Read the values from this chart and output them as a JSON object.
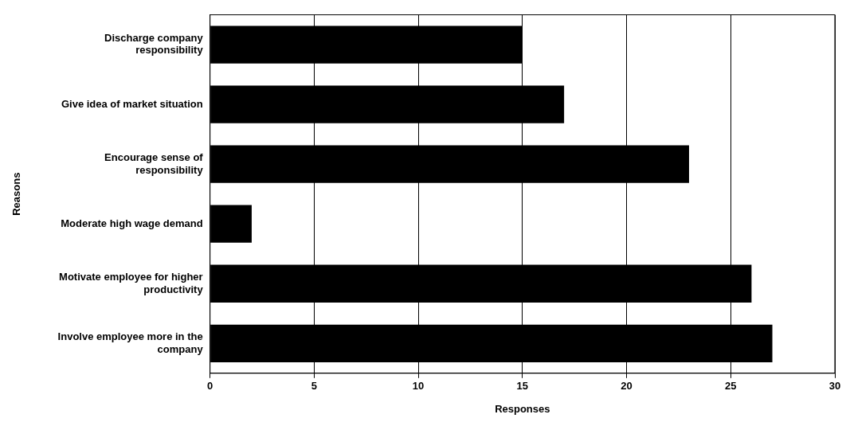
{
  "chart_data": {
    "type": "bar",
    "orientation": "horizontal",
    "xlabel": "Responses",
    "ylabel": "Reasons",
    "categories": [
      "Discharge company responsibility",
      "Give idea of market situation",
      "Encourage sense of responsibility",
      "Moderate high wage demand",
      "Motivate employee for higher productivity",
      "Involve employee more in the company"
    ],
    "values": [
      15,
      17,
      23,
      2,
      26,
      27
    ],
    "color": "#000000",
    "xlim": [
      0,
      30
    ],
    "xticks": [
      0,
      5,
      10,
      15,
      20,
      25,
      30
    ],
    "grid": "x",
    "legend": false
  }
}
